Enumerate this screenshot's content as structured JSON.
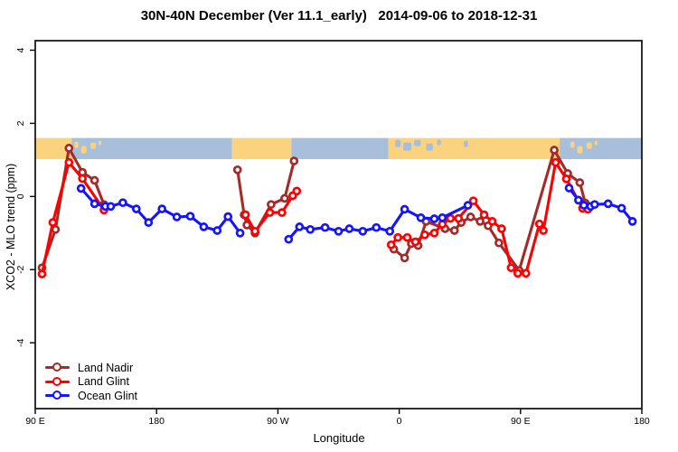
{
  "chart_data": {
    "type": "line",
    "title": "30N-40N December (Ver 11.1_early)   2014-09-06 to 2018-12-31",
    "xlabel": "Longitude",
    "ylabel": "XCO2 - MLO trend (ppm)",
    "xlim": [
      90,
      540
    ],
    "ylim": [
      -5.8,
      4.26
    ],
    "x_axis_note": "longitude axis wraps eastward: 90E > 180 > 90W > 0 > 90E > 180",
    "grid": false,
    "x_ticks": [
      {
        "label": "90 E",
        "value": 90
      },
      {
        "label": "180",
        "value": 180
      },
      {
        "label": "90 W",
        "value": 270
      },
      {
        "label": "0",
        "value": 360
      },
      {
        "label": "90 E",
        "value": 450
      },
      {
        "label": "180",
        "value": 540
      }
    ],
    "y_ticks": [
      {
        "label": "4",
        "value": 4
      },
      {
        "label": "2",
        "value": 2
      },
      {
        "label": "0",
        "value": 0
      },
      {
        "label": "-2",
        "value": -2
      },
      {
        "label": "-4",
        "value": -4
      }
    ],
    "map_band": {
      "description": "30N-40N world-map strip drawn across the plot",
      "value_top": 1.6,
      "value_bottom": 1.02,
      "land_color": "#FBD27E",
      "ocean_color": "#A8BFDB",
      "segments": [
        {
          "from": 90,
          "to": 117,
          "surface": "land"
        },
        {
          "from": 117,
          "to": 236,
          "surface": "ocean"
        },
        {
          "from": 236,
          "to": 280,
          "surface": "land"
        },
        {
          "from": 280,
          "to": 352,
          "surface": "ocean"
        },
        {
          "from": 352,
          "to": 479,
          "surface": "land"
        },
        {
          "from": 479,
          "to": 540,
          "surface": "ocean"
        }
      ],
      "patches": [
        {
          "lon": 119,
          "w_deg": 3,
          "dy": 4,
          "h": 7,
          "surface": "land"
        },
        {
          "lon": 124,
          "w_deg": 4,
          "dy": 9,
          "h": 8,
          "surface": "land"
        },
        {
          "lon": 131,
          "w_deg": 4,
          "dy": 5,
          "h": 7,
          "surface": "land"
        },
        {
          "lon": 137,
          "w_deg": 2,
          "dy": 3,
          "h": 5,
          "surface": "land"
        },
        {
          "lon": 357,
          "w_deg": 4,
          "dy": 2,
          "h": 8,
          "surface": "ocean"
        },
        {
          "lon": 363,
          "w_deg": 6,
          "dy": 5,
          "h": 9,
          "surface": "ocean"
        },
        {
          "lon": 371,
          "w_deg": 5,
          "dy": 2,
          "h": 7,
          "surface": "ocean"
        },
        {
          "lon": 380,
          "w_deg": 5,
          "dy": 6,
          "h": 8,
          "surface": "ocean"
        },
        {
          "lon": 388,
          "w_deg": 3,
          "dy": 2,
          "h": 6,
          "surface": "ocean"
        },
        {
          "lon": 408,
          "w_deg": 3,
          "dy": 3,
          "h": 7,
          "surface": "ocean"
        },
        {
          "lon": 487,
          "w_deg": 3,
          "dy": 4,
          "h": 7,
          "surface": "land"
        },
        {
          "lon": 492,
          "w_deg": 4,
          "dy": 9,
          "h": 8,
          "surface": "land"
        },
        {
          "lon": 499,
          "w_deg": 4,
          "dy": 5,
          "h": 7,
          "surface": "land"
        },
        {
          "lon": 505,
          "w_deg": 2,
          "dy": 3,
          "h": 5,
          "surface": "land"
        }
      ]
    },
    "series": [
      {
        "name": "Land Nadir",
        "color": "#A52A2A",
        "segments": [
          [
            [
              95,
              -1.95
            ],
            [
              105,
              -0.9
            ],
            [
              115,
              1.32
            ],
            [
              125,
              0.66
            ],
            [
              134,
              0.44
            ],
            [
              141,
              -0.22
            ]
          ],
          [
            [
              240,
              0.73
            ],
            [
              245,
              -0.5
            ],
            [
              247,
              -0.78
            ],
            [
              253,
              -1.0
            ],
            [
              265,
              -0.22
            ],
            [
              275,
              -0.05
            ],
            [
              282,
              0.97
            ]
          ],
          [
            [
              356,
              -1.44
            ],
            [
              364,
              -1.68
            ],
            [
              369,
              -1.29
            ],
            [
              374,
              -1.34
            ],
            [
              380,
              -0.68
            ],
            [
              394,
              -0.88
            ],
            [
              401,
              -0.93
            ],
            [
              406,
              -0.71
            ],
            [
              413,
              -0.56
            ],
            [
              420,
              -0.68
            ],
            [
              426,
              -0.8
            ],
            [
              434,
              -1.27
            ],
            [
              449,
              -2.02
            ],
            [
              475,
              1.27
            ],
            [
              485,
              0.63
            ],
            [
              494,
              0.38
            ],
            [
              498,
              -0.18
            ]
          ]
        ]
      },
      {
        "name": "Land Glint",
        "color": "#FF0000",
        "segments": [
          [
            [
              95,
              -2.12
            ],
            [
              103,
              -0.71
            ],
            [
              115,
              0.93
            ],
            [
              125,
              0.49
            ],
            [
              141,
              -0.37
            ]
          ],
          [
            [
              246,
              -0.5
            ],
            [
              253,
              -0.95
            ],
            [
              264,
              -0.44
            ],
            [
              273,
              -0.44
            ],
            [
              281,
              0.02
            ],
            [
              284,
              0.15
            ]
          ],
          [
            [
              354,
              -1.32
            ],
            [
              359,
              -1.12
            ],
            [
              366,
              -1.12
            ],
            [
              372,
              -1.24
            ],
            [
              379,
              -1.05
            ],
            [
              386,
              -1.0
            ],
            [
              392,
              -0.76
            ],
            [
              398,
              -0.6
            ],
            [
              404,
              -0.6
            ],
            [
              415,
              -0.12
            ],
            [
              423,
              -0.5
            ],
            [
              429,
              -0.68
            ],
            [
              436,
              -0.88
            ],
            [
              443,
              -1.95
            ],
            [
              448,
              -2.1
            ],
            [
              454,
              -2.1
            ],
            [
              464,
              -0.75
            ],
            [
              467,
              -0.93
            ],
            [
              476,
              0.93
            ],
            [
              484,
              0.48
            ],
            [
              496,
              -0.32
            ],
            [
              500,
              -0.35
            ]
          ]
        ]
      },
      {
        "name": "Ocean Glint",
        "color": "#1414FF",
        "segments": [
          [
            [
              124,
              0.22
            ],
            [
              134,
              -0.2
            ],
            [
              142,
              -0.27
            ],
            [
              146,
              -0.27
            ],
            [
              155,
              -0.17
            ],
            [
              165,
              -0.34
            ],
            [
              174,
              -0.71
            ],
            [
              184,
              -0.34
            ],
            [
              195,
              -0.56
            ],
            [
              205,
              -0.54
            ],
            [
              215,
              -0.83
            ],
            [
              225,
              -0.93
            ],
            [
              233,
              -0.55
            ],
            [
              242,
              -1.0
            ]
          ],
          [
            [
              278,
              -1.17
            ],
            [
              286,
              -0.83
            ],
            [
              294,
              -0.9
            ],
            [
              305,
              -0.85
            ],
            [
              315,
              -0.95
            ],
            [
              323,
              -0.88
            ],
            [
              333,
              -0.95
            ],
            [
              343,
              -0.85
            ],
            [
              353,
              -0.95
            ],
            [
              364,
              -0.35
            ],
            [
              376,
              -0.58
            ],
            [
              386,
              -0.61
            ],
            [
              392,
              -0.58
            ],
            [
              411,
              -0.24
            ]
          ],
          [
            [
              486,
              0.23
            ],
            [
              493,
              -0.1
            ],
            [
              497,
              -0.24
            ],
            [
              502,
              -0.27
            ],
            [
              505,
              -0.22
            ],
            [
              515,
              -0.2
            ],
            [
              525,
              -0.32
            ],
            [
              533,
              -0.68
            ]
          ]
        ]
      }
    ],
    "legend": {
      "position": "bottom-left"
    }
  }
}
